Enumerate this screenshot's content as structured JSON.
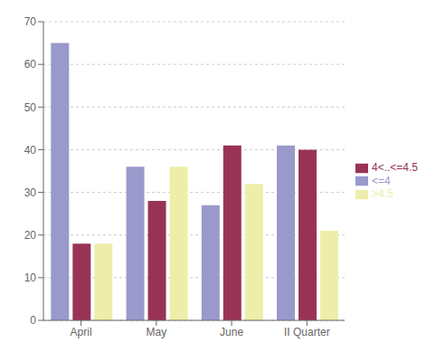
{
  "chart_data": {
    "type": "bar",
    "categories": [
      "April",
      "May",
      "June",
      "II Quarter"
    ],
    "series": [
      {
        "name": "<=4",
        "color": "#9999cc",
        "values": [
          65,
          36,
          27,
          41
        ]
      },
      {
        "name": "4<..<=4.5",
        "color": "#993355",
        "values": [
          18,
          28,
          41,
          40
        ]
      },
      {
        "name": ">4.5",
        "color": "#eeeeaa",
        "values": [
          18,
          36,
          32,
          21
        ]
      }
    ],
    "ylim": [
      0,
      70
    ],
    "yticks": [
      0,
      10,
      20,
      30,
      40,
      50,
      60,
      70
    ],
    "grid": true,
    "legend": "right"
  }
}
